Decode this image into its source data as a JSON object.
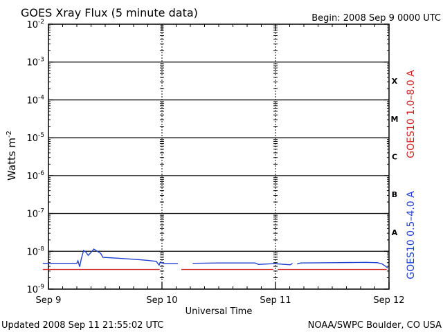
{
  "chart_data": {
    "type": "line",
    "title": "GOES Xray Flux (5 minute data)",
    "begin_label": "Begin:  2008 Sep 9 0000 UTC",
    "xlabel": "Universal Time",
    "ylabel_base": "Watts m",
    "ylabel_exp": "-2",
    "x_ticks": [
      "Sep 9",
      "Sep 10",
      "Sep 11",
      "Sep 12"
    ],
    "x_range_days": [
      0,
      3
    ],
    "y_scale": "log",
    "y_tick_exponents": [
      -9,
      -8,
      -7,
      -6,
      -5,
      -4,
      -3,
      -2
    ],
    "y_tick_base": "10",
    "ylim": [
      1e-09,
      0.01
    ],
    "class_levels": [
      {
        "label": "A",
        "low": 1e-08,
        "high": 1e-07
      },
      {
        "label": "B",
        "low": 1e-07,
        "high": 1e-06
      },
      {
        "label": "C",
        "low": 1e-06,
        "high": 1e-05
      },
      {
        "label": "M",
        "low": 1e-05,
        "high": 0.0001
      },
      {
        "label": "X",
        "low": 0.0001,
        "high": 0.001
      }
    ],
    "grid": true,
    "series": [
      {
        "name": "GOES10 1.0–8.0 A",
        "color": "#cc2222",
        "segments": [
          [
            [
              -0.05,
              3.3e-09
            ],
            [
              0.98,
              3.3e-09
            ]
          ],
          [
            [
              1.17,
              3.3e-09
            ],
            [
              1.98,
              3.3e-09
            ]
          ],
          [
            [
              2.02,
              3.3e-09
            ],
            [
              2.98,
              3.3e-09
            ]
          ]
        ]
      },
      {
        "name": "GOES10 0.5–4.0 A",
        "color": "#1f3fd0",
        "segments": [
          [
            [
              -0.05,
              4.8e-09
            ],
            [
              0.25,
              4.8e-09
            ],
            [
              0.26,
              5.6e-09
            ],
            [
              0.275,
              3.9e-09
            ],
            [
              0.29,
              6.5e-09
            ],
            [
              0.31,
              1.05e-08
            ],
            [
              0.33,
              9.5e-09
            ],
            [
              0.35,
              7.8e-09
            ],
            [
              0.37,
              9e-09
            ],
            [
              0.4,
              1.15e-08
            ],
            [
              0.43,
              1e-08
            ],
            [
              0.46,
              8.8e-09
            ],
            [
              0.48,
              6.9e-09
            ],
            [
              0.6,
              6.6e-09
            ],
            [
              0.7,
              6.3e-09
            ],
            [
              0.8,
              6e-09
            ],
            [
              0.88,
              5.7e-09
            ],
            [
              0.95,
              5.4e-09
            ],
            [
              0.975,
              4.3e-09
            ],
            [
              0.985,
              5.2e-09
            ],
            [
              1.02,
              4.7e-09
            ],
            [
              1.14,
              4.7e-09
            ]
          ],
          [
            [
              1.27,
              4.8e-09
            ],
            [
              1.5,
              4.9e-09
            ],
            [
              1.7,
              4.9e-09
            ],
            [
              1.82,
              4.9e-09
            ],
            [
              1.85,
              4.5e-09
            ],
            [
              1.92,
              4.6e-09
            ],
            [
              1.99,
              4.7e-09
            ],
            [
              2.13,
              4.4e-09
            ],
            [
              2.15,
              4.8e-09
            ]
          ],
          [
            [
              2.19,
              4.6e-09
            ],
            [
              2.22,
              4.9e-09
            ],
            [
              2.5,
              5e-09
            ],
            [
              2.8,
              5.1e-09
            ],
            [
              2.9,
              5e-09
            ],
            [
              2.94,
              4.6e-09
            ],
            [
              2.97,
              4e-09
            ],
            [
              2.99,
              3.6e-09
            ]
          ]
        ]
      }
    ]
  },
  "footer": {
    "updated": "Updated 2008 Sep 11 21:55:02 UTC",
    "source": "NOAA/SWPC Boulder, CO USA"
  }
}
